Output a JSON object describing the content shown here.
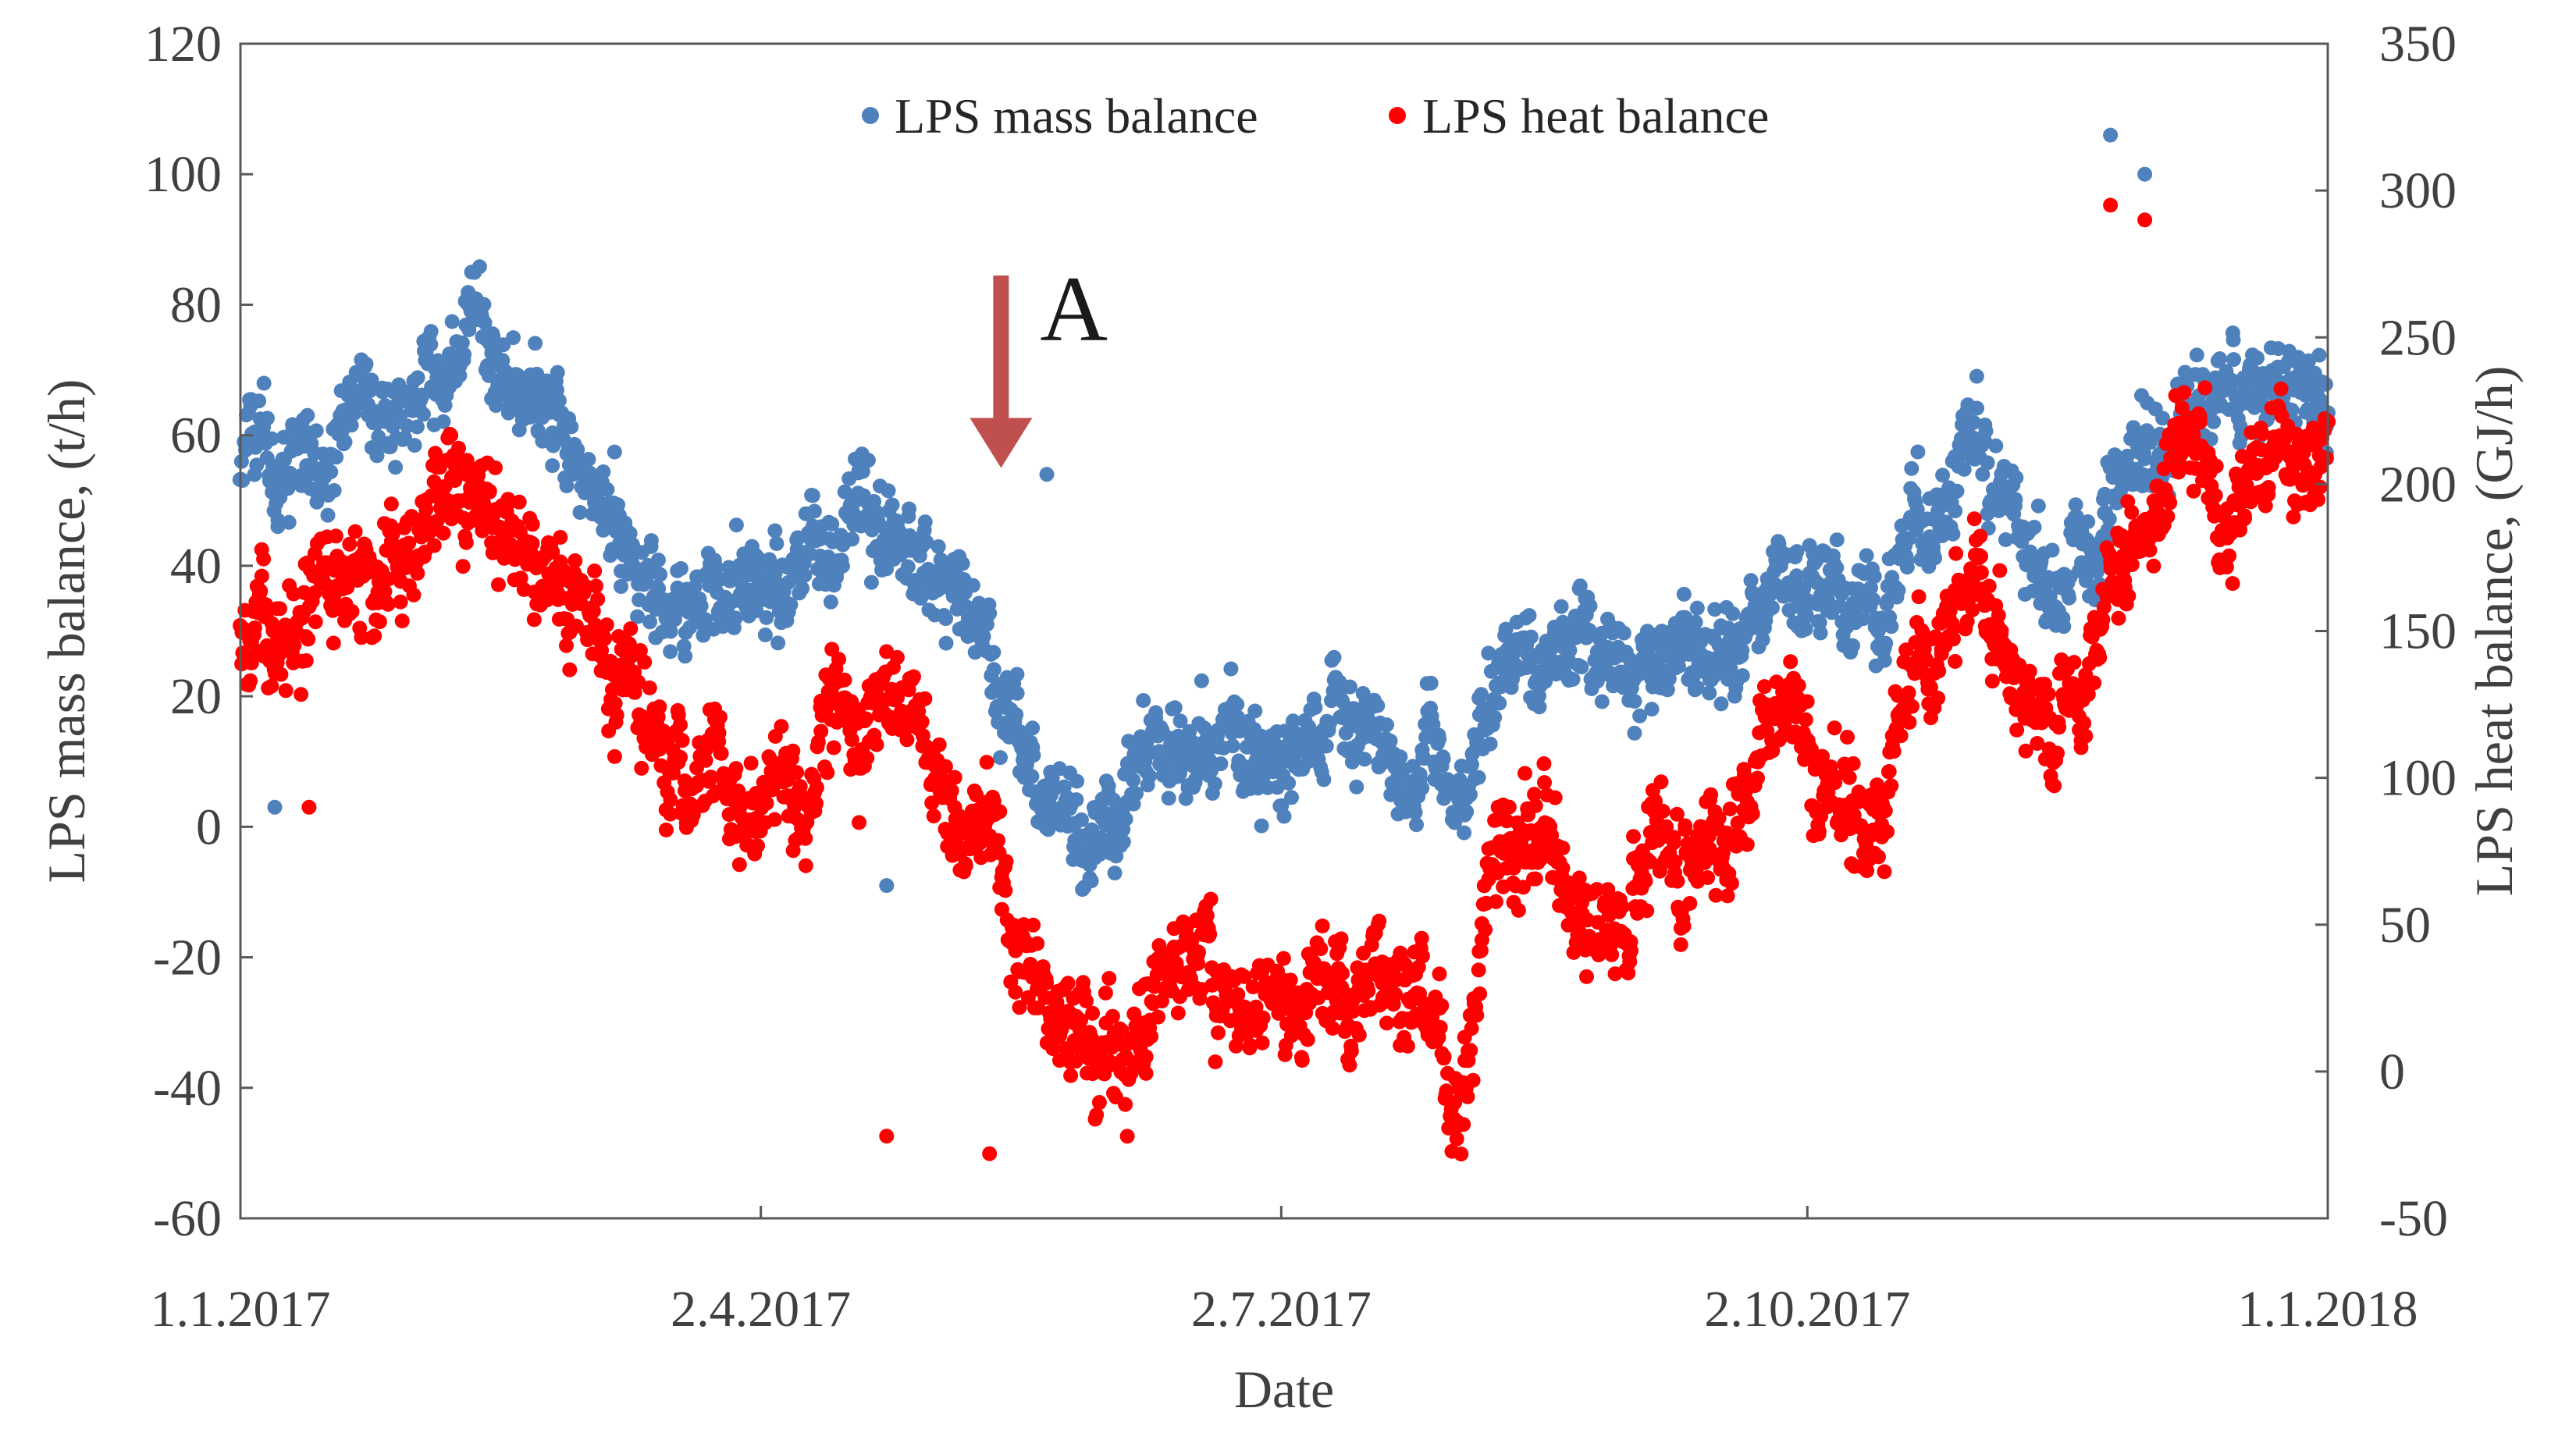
{
  "chart_data": {
    "type": "scatter",
    "xlabel": "Date",
    "ylabel_left": "LPS mass balance, (t/h)",
    "ylabel_right": "LPS heat balance, (GJ/h)",
    "x_start": "1.1.2017",
    "x_end": "1.1.2018",
    "x_range_days": [
      0,
      365
    ],
    "x_ticks": [
      {
        "label": "1.1.2017",
        "day": 0
      },
      {
        "label": "2.4.2017",
        "day": 91
      },
      {
        "label": "2.7.2017",
        "day": 182
      },
      {
        "label": "2.10.2017",
        "day": 274
      },
      {
        "label": "1.1.2018",
        "day": 365
      }
    ],
    "ylim_left": [
      -60,
      120
    ],
    "yticks_left": [
      -60,
      -40,
      -20,
      0,
      20,
      40,
      60,
      80,
      100,
      120
    ],
    "ylim_right": [
      -50,
      350
    ],
    "yticks_right": [
      -50,
      0,
      50,
      100,
      150,
      200,
      250,
      300,
      350
    ],
    "legend": {
      "position": "top-center"
    },
    "series": [
      {
        "name": "LPS mass balance",
        "axis": "left",
        "color": "#4F81BD",
        "trend": [
          [
            0,
            55
          ],
          [
            10,
            58
          ],
          [
            20,
            60
          ],
          [
            30,
            63
          ],
          [
            34,
            72
          ],
          [
            40,
            76
          ],
          [
            45,
            70
          ],
          [
            52,
            62
          ],
          [
            60,
            55
          ],
          [
            66,
            48
          ],
          [
            72,
            40
          ],
          [
            78,
            36
          ],
          [
            85,
            34
          ],
          [
            92,
            38
          ],
          [
            100,
            40
          ],
          [
            107,
            45
          ],
          [
            114,
            44
          ],
          [
            121,
            40
          ],
          [
            127,
            36
          ],
          [
            132,
            22
          ],
          [
            138,
            8
          ],
          [
            145,
            2
          ],
          [
            152,
            0
          ],
          [
            158,
            8
          ],
          [
            165,
            12
          ],
          [
            172,
            12
          ],
          [
            180,
            10
          ],
          [
            188,
            14
          ],
          [
            195,
            12
          ],
          [
            202,
            10
          ],
          [
            208,
            14
          ],
          [
            214,
            5
          ],
          [
            220,
            22
          ],
          [
            228,
            28
          ],
          [
            236,
            25
          ],
          [
            244,
            22
          ],
          [
            252,
            26
          ],
          [
            260,
            24
          ],
          [
            266,
            38
          ],
          [
            273,
            40
          ],
          [
            280,
            35
          ],
          [
            286,
            32
          ],
          [
            292,
            42
          ],
          [
            298,
            52
          ],
          [
            304,
            58
          ],
          [
            311,
            45
          ],
          [
            318,
            38
          ],
          [
            324,
            48
          ],
          [
            330,
            58
          ],
          [
            336,
            62
          ],
          [
            342,
            66
          ],
          [
            348,
            68
          ],
          [
            354,
            70
          ],
          [
            360,
            66
          ],
          [
            365,
            60
          ]
        ],
        "outliers": [
          [
            6,
            3
          ],
          [
            113,
            -9
          ],
          [
            141,
            54
          ],
          [
            327,
            106
          ],
          [
            333,
            100
          ]
        ]
      },
      {
        "name": "LPS heat balance",
        "axis": "right",
        "color": "#FF0000",
        "trend": [
          [
            0,
            145
          ],
          [
            6,
            150
          ],
          [
            12,
            158
          ],
          [
            20,
            162
          ],
          [
            28,
            168
          ],
          [
            34,
            195
          ],
          [
            40,
            205
          ],
          [
            45,
            185
          ],
          [
            52,
            168
          ],
          [
            60,
            155
          ],
          [
            66,
            140
          ],
          [
            72,
            115
          ],
          [
            78,
            95
          ],
          [
            85,
            90
          ],
          [
            92,
            100
          ],
          [
            100,
            95
          ],
          [
            107,
            120
          ],
          [
            114,
            130
          ],
          [
            121,
            110
          ],
          [
            127,
            95
          ],
          [
            132,
            70
          ],
          [
            138,
            25
          ],
          [
            145,
            5
          ],
          [
            152,
            -10
          ],
          [
            158,
            20
          ],
          [
            165,
            40
          ],
          [
            172,
            30
          ],
          [
            180,
            25
          ],
          [
            188,
            35
          ],
          [
            195,
            30
          ],
          [
            202,
            30
          ],
          [
            208,
            10
          ],
          [
            214,
            -15
          ],
          [
            220,
            80
          ],
          [
            228,
            85
          ],
          [
            236,
            60
          ],
          [
            244,
            65
          ],
          [
            252,
            70
          ],
          [
            260,
            65
          ],
          [
            266,
            105
          ],
          [
            273,
            110
          ],
          [
            280,
            95
          ],
          [
            286,
            85
          ],
          [
            292,
            125
          ],
          [
            298,
            145
          ],
          [
            304,
            175
          ],
          [
            311,
            135
          ],
          [
            318,
            110
          ],
          [
            324,
            150
          ],
          [
            330,
            180
          ],
          [
            336,
            205
          ],
          [
            342,
            210
          ],
          [
            348,
            200
          ],
          [
            354,
            195
          ],
          [
            360,
            215
          ],
          [
            365,
            210
          ]
        ],
        "outliers": [
          [
            12,
            90
          ],
          [
            113,
            -22
          ],
          [
            131,
            -28
          ],
          [
            327,
            295
          ],
          [
            333,
            290
          ]
        ]
      }
    ],
    "annotations": [
      {
        "text": "A",
        "day": 133,
        "points_to_left_value": 55,
        "arrow_color": "#C0504D"
      }
    ]
  }
}
